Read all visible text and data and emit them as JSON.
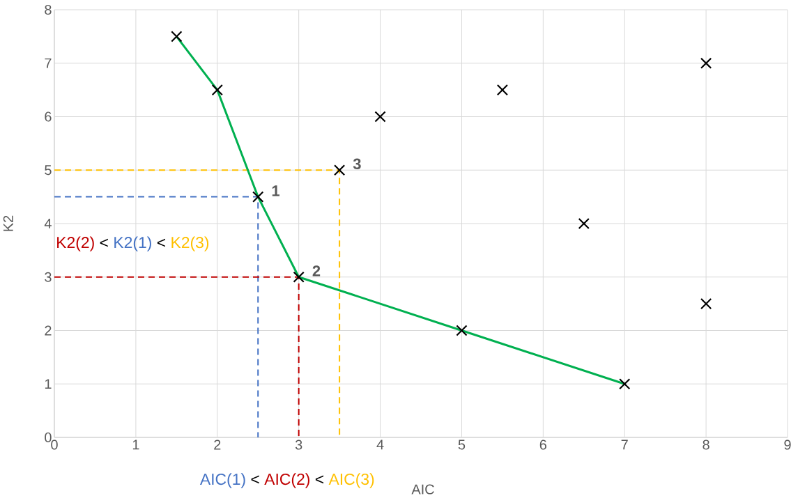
{
  "chart_data": {
    "type": "scatter",
    "xlabel": "AIC",
    "ylabel": "K2",
    "xlim": [
      0,
      9
    ],
    "ylim": [
      0,
      8
    ],
    "xticks": [
      0,
      1,
      2,
      3,
      4,
      5,
      6,
      7,
      8,
      9
    ],
    "yticks": [
      0,
      1,
      2,
      3,
      4,
      5,
      6,
      7,
      8
    ],
    "grid": true,
    "series": [
      {
        "type": "line",
        "color": "#4472c4",
        "line_style": "dashed",
        "marker": "none",
        "x": [
          0,
          2.5,
          2.5
        ],
        "values": [
          4.5,
          4.5,
          0
        ]
      },
      {
        "type": "line",
        "color": "#c00000",
        "line_style": "dashed",
        "marker": "none",
        "x": [
          0,
          3,
          3
        ],
        "values": [
          3,
          3,
          0
        ]
      },
      {
        "type": "line",
        "color": "#ffc000",
        "line_style": "dashed",
        "marker": "none",
        "x": [
          0,
          3.5,
          3.5
        ],
        "values": [
          5,
          5,
          0
        ]
      },
      {
        "type": "line",
        "color": "#00b050",
        "line_style": "solid",
        "marker": "none",
        "x": [
          1.5,
          2,
          2.5,
          3,
          5,
          7
        ],
        "values": [
          7.5,
          6.5,
          4.5,
          3,
          2,
          1
        ]
      },
      {
        "type": "scatter",
        "color": "#000000",
        "marker": "cross",
        "x": [
          1.5,
          2,
          2.5,
          3,
          3.5,
          4,
          5,
          5.5,
          6.5,
          7,
          8,
          8
        ],
        "values": [
          7.5,
          6.5,
          4.5,
          3,
          5,
          6,
          2,
          6.5,
          4,
          1,
          7,
          2.5
        ]
      }
    ],
    "annotations": [
      "K2(2)",
      "<",
      "K2(1)",
      "<",
      "K2(3)",
      "AIC(1)",
      "<",
      "AIC(2)",
      "<",
      "AIC(3)",
      {
        "text": "1",
        "x": 2.5,
        "y": 4.5
      },
      {
        "text": "2",
        "x": 3,
        "y": 3
      },
      {
        "text": "3",
        "x": 3.5,
        "y": 5
      }
    ]
  }
}
